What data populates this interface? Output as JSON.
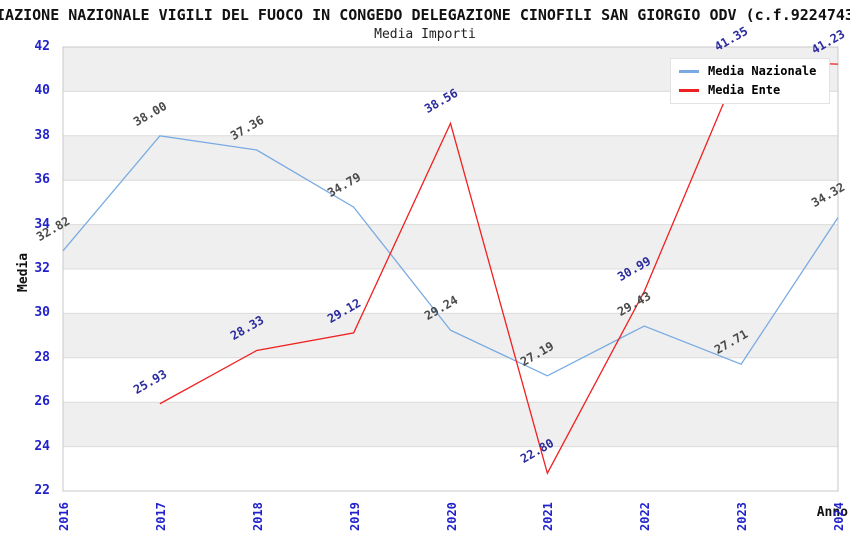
{
  "chart_data": {
    "type": "line",
    "title": "IAZIONE NAZIONALE VIGILI DEL FUOCO IN CONGEDO DELEGAZIONE CINOFILI SAN GIORGIO ODV (c.f.9224743",
    "subtitle": "Media Importi",
    "xlabel": "Anno",
    "ylabel": "Media",
    "categories": [
      "2016",
      "2017",
      "2018",
      "2019",
      "2020",
      "2021",
      "2022",
      "2023",
      "2024"
    ],
    "ylim": [
      22,
      42
    ],
    "ytick_step": 2,
    "grid": "horizontal",
    "plot_background": "alternating horizontal bands",
    "legend_position": "top-right",
    "colors": {
      "tick_label": "#2222cc",
      "band_gray": "#efefef",
      "gridline": "#dcdcdc",
      "plot_border": "#c8c8c8"
    },
    "series": [
      {
        "name": "Media Nazionale",
        "color": "#79abe2",
        "label_color": "#4a4a4a",
        "categories": [
          "2016",
          "2017",
          "2018",
          "2019",
          "2020",
          "2021",
          "2022",
          "2023",
          "2024"
        ],
        "values": [
          32.82,
          38.0,
          37.36,
          34.79,
          29.24,
          27.19,
          29.43,
          27.71,
          34.32
        ],
        "labels": [
          "32.82",
          "38.00",
          "37.36",
          "34.79",
          "29.24",
          "27.19",
          "29.43",
          "27.71",
          "34.32"
        ]
      },
      {
        "name": "Media Ente",
        "color": "#f02020",
        "label_color": "#2b2b9e",
        "categories": [
          "2017",
          "2018",
          "2019",
          "2020",
          "2021",
          "2022",
          "2023",
          "2024"
        ],
        "values": [
          25.93,
          28.33,
          29.12,
          38.56,
          22.8,
          30.99,
          41.35,
          41.23
        ],
        "labels": [
          "25.93",
          "28.33",
          "29.12",
          "38.56",
          "22.80",
          "30.99",
          "41.35",
          "41.23"
        ]
      }
    ]
  }
}
